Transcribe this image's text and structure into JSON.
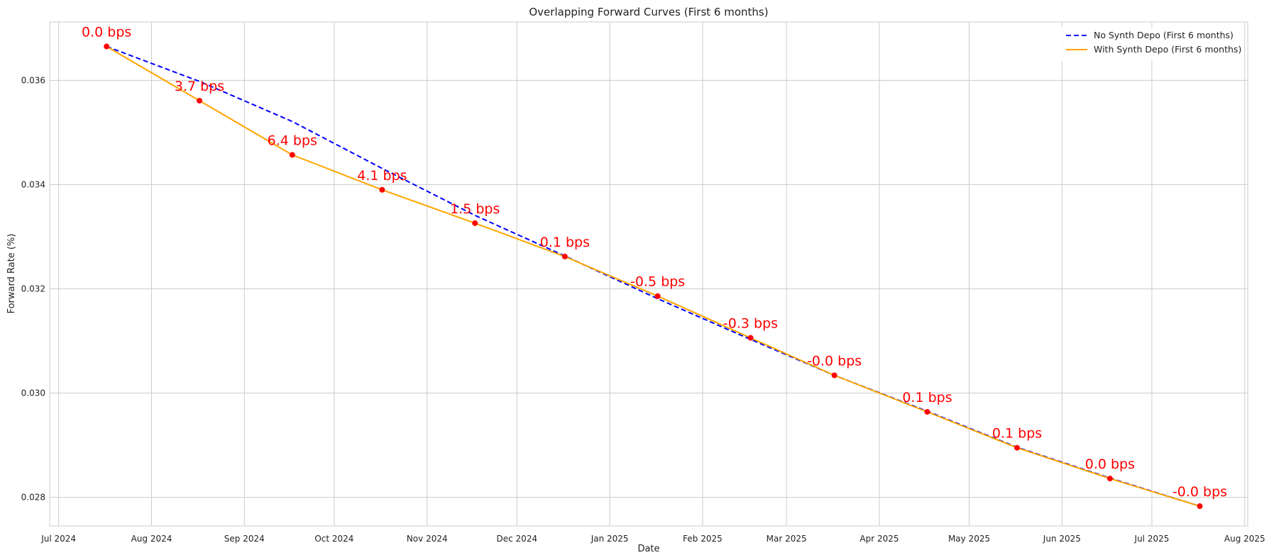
{
  "chart_data": {
    "type": "line",
    "title": "Overlapping Forward Curves (First 6 months)",
    "xlabel": "Date",
    "ylabel": "Forward Rate (%)",
    "grid": true,
    "legend_position": "top-right",
    "xlim": [
      "2024-06-28",
      "2025-08-02"
    ],
    "ylim": [
      0.02745,
      0.03712
    ],
    "x_ticks": [
      {
        "date": "2024-07-01",
        "label": "Jul 2024"
      },
      {
        "date": "2024-08-01",
        "label": "Aug 2024"
      },
      {
        "date": "2024-09-01",
        "label": "Sep 2024"
      },
      {
        "date": "2024-10-01",
        "label": "Oct 2024"
      },
      {
        "date": "2024-11-01",
        "label": "Nov 2024"
      },
      {
        "date": "2024-12-01",
        "label": "Dec 2024"
      },
      {
        "date": "2025-01-01",
        "label": "Jan 2025"
      },
      {
        "date": "2025-02-01",
        "label": "Feb 2025"
      },
      {
        "date": "2025-03-01",
        "label": "Mar 2025"
      },
      {
        "date": "2025-04-01",
        "label": "Apr 2025"
      },
      {
        "date": "2025-05-01",
        "label": "May 2025"
      },
      {
        "date": "2025-06-01",
        "label": "Jun 2025"
      },
      {
        "date": "2025-07-01",
        "label": "Jul 2025"
      },
      {
        "date": "2025-08-01",
        "label": "Aug 2025"
      }
    ],
    "y_ticks": [
      {
        "value": 0.028,
        "label": "0.028"
      },
      {
        "value": 0.03,
        "label": "0.030"
      },
      {
        "value": 0.032,
        "label": "0.032"
      },
      {
        "value": 0.034,
        "label": "0.034"
      },
      {
        "value": 0.036,
        "label": "0.036"
      }
    ],
    "series": [
      {
        "name": "No Synth Depo (First 6 months)",
        "color": "#0000ff",
        "line_style": "dashed",
        "x": [
          "2024-07-17",
          "2024-08-17",
          "2024-09-17",
          "2024-10-17",
          "2024-11-17",
          "2024-12-17",
          "2025-01-17",
          "2025-02-17",
          "2025-03-17",
          "2025-04-17",
          "2025-05-17",
          "2025-06-17",
          "2025-07-17"
        ],
        "y": [
          0.03665,
          0.03598,
          0.03521,
          0.03431,
          0.03341,
          0.03263,
          0.03181,
          0.03103,
          0.03034,
          0.02965,
          0.02896,
          0.02837,
          0.02783
        ]
      },
      {
        "name": "With Synth Depo (First 6 months)",
        "color": "#ffa500",
        "line_style": "solid",
        "x": [
          "2024-07-17",
          "2024-08-17",
          "2024-09-17",
          "2024-10-17",
          "2024-11-17",
          "2024-12-17",
          "2025-01-17",
          "2025-02-17",
          "2025-03-17",
          "2025-04-17",
          "2025-05-17",
          "2025-06-17",
          "2025-07-17"
        ],
        "y": [
          0.03665,
          0.03561,
          0.03457,
          0.0339,
          0.03326,
          0.03262,
          0.03186,
          0.03106,
          0.03034,
          0.02964,
          0.02895,
          0.02836,
          0.02783
        ]
      }
    ],
    "points": {
      "color": "#ff0000",
      "x": [
        "2024-07-17",
        "2024-08-17",
        "2024-09-17",
        "2024-10-17",
        "2024-11-17",
        "2024-12-17",
        "2025-01-17",
        "2025-02-17",
        "2025-03-17",
        "2025-04-17",
        "2025-05-17",
        "2025-06-17",
        "2025-07-17"
      ],
      "y": [
        0.03665,
        0.03561,
        0.03457,
        0.0339,
        0.03326,
        0.03262,
        0.03186,
        0.03106,
        0.03034,
        0.02964,
        0.02895,
        0.02836,
        0.02783
      ]
    },
    "annotations": {
      "color": "#ff0000",
      "labels": [
        "0.0 bps",
        "3.7 bps",
        "6.4 bps",
        "4.1 bps",
        "1.5 bps",
        "0.1 bps",
        "-0.5 bps",
        "-0.3 bps",
        "-0.0 bps",
        "0.1 bps",
        "0.1 bps",
        "0.0 bps",
        "-0.0 bps"
      ]
    }
  }
}
